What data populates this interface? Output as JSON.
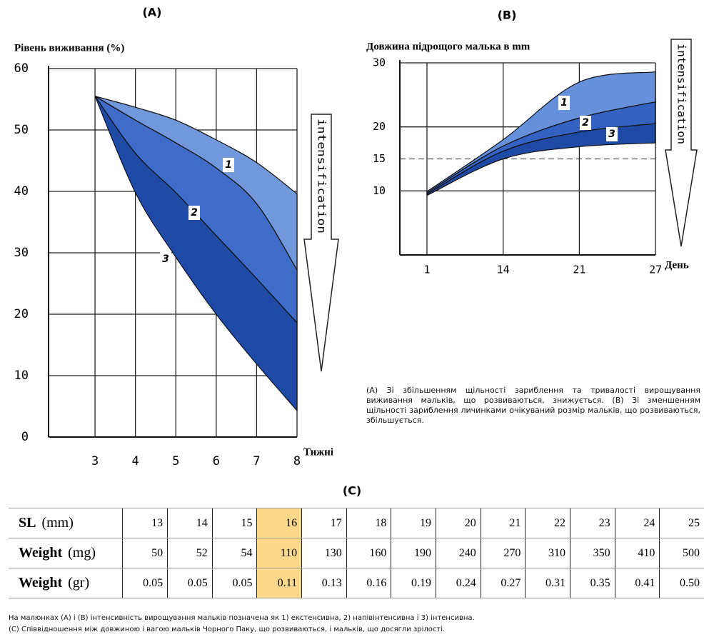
{
  "panels": {
    "a": "(A)",
    "b": "(B)",
    "c": "(C)"
  },
  "chart_data": [
    {
      "type": "area",
      "y_label": "Рівень виживання (%)",
      "x_label": "Тижні",
      "arrow_label": "intensification",
      "x": [
        3,
        4,
        5,
        6,
        7,
        8
      ],
      "xlim": [
        1.85,
        8
      ],
      "xticks": [
        3,
        4,
        5,
        6,
        7,
        8
      ],
      "ylim": [
        0,
        60
      ],
      "yticks": [
        0,
        10,
        20,
        30,
        40,
        50,
        60
      ],
      "grid": true,
      "bands": [
        {
          "label": "1",
          "color": "#7198da",
          "upper": [
            55.5,
            53.7,
            51.6,
            48.4,
            44.7,
            39.6
          ],
          "lower": [
            55.5,
            51.6,
            47.9,
            43.8,
            38,
            27.2
          ]
        },
        {
          "label": "2",
          "color": "#3f6cc9",
          "upper": [
            55.5,
            51.6,
            47.9,
            43.8,
            38,
            27.2
          ],
          "lower": [
            55.5,
            46.2,
            39.8,
            32.8,
            25.8,
            18.6
          ]
        },
        {
          "label": "3",
          "color": "#1f4aa6",
          "upper": [
            55.5,
            46.2,
            39.8,
            32.8,
            25.8,
            18.6
          ],
          "lower": [
            55.5,
            39.8,
            29.3,
            20,
            11.9,
            4.3
          ]
        }
      ]
    },
    {
      "type": "area",
      "y_label": "Довжина підрощого малька в mm",
      "x_label": "День",
      "arrow_label": "intensification",
      "categories": [
        "1",
        "14",
        "21",
        "27"
      ],
      "ylim": [
        0,
        30
      ],
      "yticks": [
        10,
        15,
        20,
        30
      ],
      "dashed_ticks": [
        15
      ],
      "grid": true,
      "bands": [
        {
          "label": "1",
          "color": "#6690da",
          "upper": [
            9.9,
            18,
            27,
            28.6
          ],
          "lower": [
            9.7,
            17,
            21.4,
            23.9
          ]
        },
        {
          "label": "2",
          "color": "#3362c2",
          "upper": [
            9.7,
            17,
            21.4,
            23.9
          ],
          "lower": [
            9.5,
            16.2,
            19.2,
            20.5
          ]
        },
        {
          "label": "3",
          "color": "#1e4aa5",
          "upper": [
            9.5,
            16.2,
            19.2,
            20.5
          ],
          "lower": [
            9.3,
            15,
            16.9,
            17.5
          ]
        }
      ]
    }
  ],
  "caption_ab": "(A) Зі збільшенням щільності зариблення та тривалості вирощування виживання мальків, що розвиваються, знижується. (B) Зі зменшенням щільності зариблення личинками очікуваний розмір мальків, що розвиваються, збільшується.",
  "table": {
    "highlight_column": 3,
    "highlight_color": "#fcd98a",
    "rows": [
      {
        "label": "SL",
        "unit": "(mm)",
        "cells": [
          "13",
          "14",
          "15",
          "16",
          "17",
          "18",
          "19",
          "20",
          "21",
          "22",
          "23",
          "24",
          "25"
        ]
      },
      {
        "label": "Weight",
        "unit": "(mg)",
        "cells": [
          "50",
          "52",
          "54",
          "110",
          "130",
          "160",
          "190",
          "240",
          "270",
          "310",
          "350",
          "410",
          "500"
        ]
      },
      {
        "label": "Weight",
        "unit": "(gr)",
        "cells": [
          "0.05",
          "0.05",
          "0.05",
          "0.11",
          "0.13",
          "0.16",
          "0.19",
          "0.24",
          "0.27",
          "0.31",
          "0.35",
          "0.41",
          "0.50"
        ]
      }
    ]
  },
  "footnotes": [
    "На малюнках (A) і (B) інтенсивність вирощування мальків позначена як 1) екстенсивна, 2) напівінтенсивна і 3) інтенсивна.",
    "(C) Співвідношення між довжиною і вагою мальків Чорного Паку, що розвиваються, і мальків, що досягли зрілості."
  ]
}
